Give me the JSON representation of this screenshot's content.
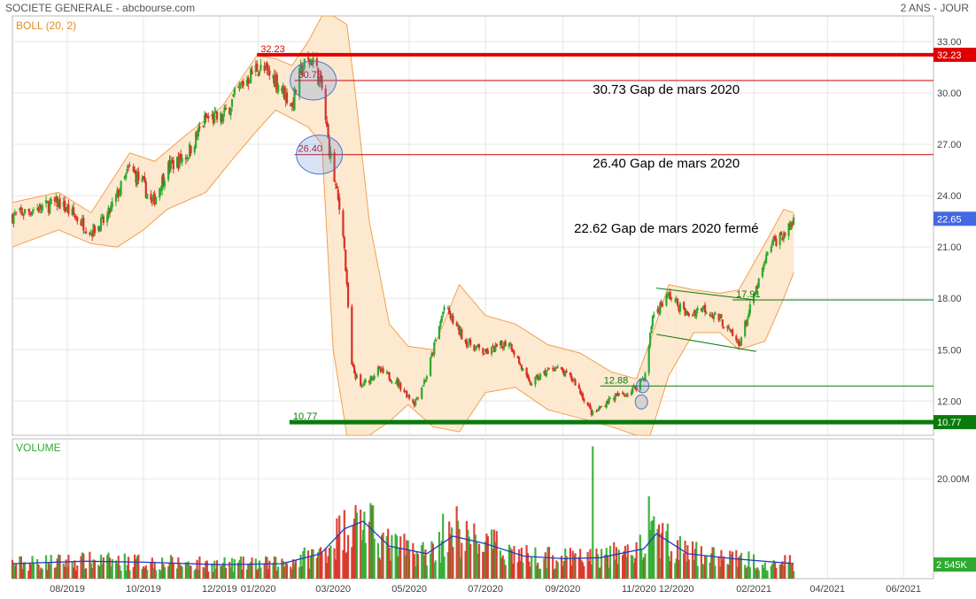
{
  "header": {
    "title": "SOCIETE GENERALE - abcbourse.com",
    "period": "2 ANS - JOUR"
  },
  "colors": {
    "up": "#2eaa2e",
    "down": "#d93025",
    "band_fill": "#fde5c8",
    "band_line": "#f0a050",
    "resistance": "#e00000",
    "support": "#0a7a0a",
    "volume_avg": "#1f3fbf",
    "last_price_bg": "#4169e1"
  },
  "chart_data": [
    {
      "type": "candlestick",
      "indicator_label": "BOLL (20, 2)",
      "ylim": [
        10.0,
        34.5
      ],
      "y_ticks": [
        "12.00",
        "15.00",
        "18.00",
        "21.00",
        "24.00",
        "27.00",
        "30.00",
        "33.00"
      ],
      "x_ticks": [
        "08/2019",
        "10/2019",
        "12/2019",
        "01/2020",
        "03/2020",
        "05/2020",
        "07/2020",
        "09/2020",
        "11/2020",
        "12/2020",
        "02/2021",
        "04/2021",
        "06/2021"
      ],
      "x_tick_dates": [
        "2019-08-01",
        "2019-10-01",
        "2019-12-01",
        "2020-01-01",
        "2020-03-01",
        "2020-05-01",
        "2020-07-01",
        "2020-09-01",
        "2020-11-01",
        "2020-12-01",
        "2021-02-01",
        "2021-04-01",
        "2021-06-01"
      ],
      "x_range": [
        "2019-06-18",
        "2021-06-25"
      ],
      "close_path": [
        [
          "2019-06-18",
          22.8
        ],
        [
          "2019-07-05",
          23.2
        ],
        [
          "2019-07-25",
          23.6
        ],
        [
          "2019-08-10",
          22.6
        ],
        [
          "2019-08-20",
          21.9
        ],
        [
          "2019-09-01",
          22.6
        ],
        [
          "2019-09-20",
          25.6
        ],
        [
          "2019-10-01",
          24.6
        ],
        [
          "2019-10-08",
          23.5
        ],
        [
          "2019-10-20",
          25.6
        ],
        [
          "2019-11-05",
          26.4
        ],
        [
          "2019-11-20",
          28.5
        ],
        [
          "2019-12-03",
          28.5
        ],
        [
          "2019-12-18",
          30.4
        ],
        [
          "2019-12-31",
          31.5
        ],
        [
          "2020-01-07",
          31.2
        ],
        [
          "2020-01-15",
          30.8
        ],
        [
          "2020-01-28",
          29.3
        ],
        [
          "2020-02-05",
          31.5
        ],
        [
          "2020-02-14",
          32.0
        ],
        [
          "2020-02-21",
          30.2
        ],
        [
          "2020-02-26",
          27.2
        ],
        [
          "2020-03-03",
          24.5
        ],
        [
          "2020-03-09",
          22.0
        ],
        [
          "2020-03-16",
          14.0
        ],
        [
          "2020-03-23",
          12.8
        ],
        [
          "2020-04-06",
          13.8
        ],
        [
          "2020-04-20",
          13.2
        ],
        [
          "2020-05-05",
          11.9
        ],
        [
          "2020-05-15",
          13.5
        ],
        [
          "2020-05-29",
          17.5
        ],
        [
          "2020-06-15",
          15.5
        ],
        [
          "2020-07-01",
          14.8
        ],
        [
          "2020-07-20",
          15.5
        ],
        [
          "2020-08-05",
          13.0
        ],
        [
          "2020-08-25",
          14.0
        ],
        [
          "2020-09-10",
          13.2
        ],
        [
          "2020-09-25",
          11.2
        ],
        [
          "2020-10-10",
          12.2
        ],
        [
          "2020-10-25",
          12.5
        ],
        [
          "2020-11-06",
          13.5
        ],
        [
          "2020-11-12",
          17.0
        ],
        [
          "2020-11-25",
          18.2
        ],
        [
          "2020-12-10",
          17.0
        ],
        [
          "2020-12-22",
          17.5
        ],
        [
          "2021-01-05",
          16.8
        ],
        [
          "2021-01-20",
          15.3
        ],
        [
          "2021-02-03",
          18.5
        ],
        [
          "2021-02-15",
          21.2
        ],
        [
          "2021-03-01",
          22.0
        ],
        [
          "2021-03-05",
          22.65
        ]
      ],
      "bollinger_upper": [
        [
          "2019-06-18",
          23.6
        ],
        [
          "2019-07-25",
          24.2
        ],
        [
          "2019-08-20",
          23.0
        ],
        [
          "2019-09-20",
          26.5
        ],
        [
          "2019-10-10",
          26.0
        ],
        [
          "2019-11-05",
          27.6
        ],
        [
          "2019-12-03",
          29.2
        ],
        [
          "2019-12-31",
          32.2
        ],
        [
          "2020-01-15",
          32.0
        ],
        [
          "2020-01-28",
          31.6
        ],
        [
          "2020-02-10",
          33.0
        ],
        [
          "2020-02-21",
          34.5
        ],
        [
          "2020-03-01",
          34.5
        ],
        [
          "2020-03-12",
          34.0
        ],
        [
          "2020-03-18",
          30.5
        ],
        [
          "2020-03-30",
          22.5
        ],
        [
          "2020-04-15",
          16.5
        ],
        [
          "2020-04-30",
          15.2
        ],
        [
          "2020-05-20",
          15.0
        ],
        [
          "2020-06-10",
          18.8
        ],
        [
          "2020-07-01",
          17.0
        ],
        [
          "2020-07-25",
          16.5
        ],
        [
          "2020-08-20",
          15.3
        ],
        [
          "2020-09-15",
          14.8
        ],
        [
          "2020-10-10",
          13.7
        ],
        [
          "2020-10-30",
          13.3
        ],
        [
          "2020-11-10",
          15.5
        ],
        [
          "2020-11-25",
          18.8
        ],
        [
          "2020-12-15",
          18.5
        ],
        [
          "2021-01-05",
          18.3
        ],
        [
          "2021-01-20",
          18.5
        ],
        [
          "2021-02-10",
          21.2
        ],
        [
          "2021-02-25",
          23.2
        ],
        [
          "2021-03-05",
          23.0
        ]
      ],
      "bollinger_lower": [
        [
          "2019-06-18",
          21.0
        ],
        [
          "2019-07-25",
          22.0
        ],
        [
          "2019-08-20",
          21.2
        ],
        [
          "2019-09-10",
          21.0
        ],
        [
          "2019-10-01",
          22.0
        ],
        [
          "2019-10-20",
          23.2
        ],
        [
          "2019-11-20",
          24.2
        ],
        [
          "2019-12-10",
          26.0
        ],
        [
          "2019-12-31",
          27.8
        ],
        [
          "2020-01-15",
          29.0
        ],
        [
          "2020-01-28",
          28.5
        ],
        [
          "2020-02-10",
          28.0
        ],
        [
          "2020-02-21",
          27.0
        ],
        [
          "2020-03-01",
          15.0
        ],
        [
          "2020-03-12",
          9.0
        ],
        [
          "2020-03-30",
          6.0
        ],
        [
          "2020-04-15",
          10.8
        ],
        [
          "2020-04-30",
          11.8
        ],
        [
          "2020-05-20",
          10.5
        ],
        [
          "2020-06-10",
          10.2
        ],
        [
          "2020-07-01",
          12.5
        ],
        [
          "2020-07-25",
          12.8
        ],
        [
          "2020-08-20",
          11.5
        ],
        [
          "2020-09-15",
          11.0
        ],
        [
          "2020-10-10",
          10.5
        ],
        [
          "2020-10-30",
          9.5
        ],
        [
          "2020-11-10",
          9.0
        ],
        [
          "2020-11-25",
          13.5
        ],
        [
          "2020-12-15",
          16.0
        ],
        [
          "2021-01-05",
          16.0
        ],
        [
          "2021-01-20",
          15.0
        ],
        [
          "2021-02-10",
          15.5
        ],
        [
          "2021-02-25",
          18.0
        ],
        [
          "2021-03-05",
          19.5
        ]
      ],
      "horizontal_levels": [
        {
          "value": 32.23,
          "label": "32.23",
          "color": "#e00000",
          "width": 4,
          "from": "2019-12-31",
          "axis_label": "32.23"
        },
        {
          "value": 30.73,
          "label": "30.73",
          "color": "#cc0000",
          "width": 1,
          "from": "2020-01-30"
        },
        {
          "value": 26.4,
          "label": "26.40",
          "color": "#cc0000",
          "width": 1,
          "from": "2020-01-30"
        },
        {
          "value": 12.88,
          "label": "12.88",
          "color": "#0a7a0a",
          "width": 1,
          "from": "2020-10-01"
        },
        {
          "value": 17.91,
          "label": "17.91",
          "color": "#0a7a0a",
          "width": 1,
          "from": "2021-01-15"
        },
        {
          "value": 10.77,
          "label": "10.77",
          "color": "#0a7a0a",
          "width": 5,
          "from": "2020-01-26",
          "axis_label": "10.77"
        }
      ],
      "trendlines": [
        {
          "from": [
            "2020-11-15",
            18.6
          ],
          "to": [
            "2021-02-03",
            17.9
          ]
        },
        {
          "from": [
            "2020-11-15",
            15.9
          ],
          "to": [
            "2021-02-03",
            14.9
          ]
        }
      ],
      "gap_circles": [
        {
          "date": "2020-02-14",
          "value": 30.73
        },
        {
          "date": "2020-02-19",
          "value": 26.4
        },
        {
          "date": "2020-11-04",
          "value": 12.9
        },
        {
          "date": "2020-11-03",
          "value": 11.95
        }
      ],
      "annotations": [
        {
          "text": "30.73 Gap de mars 2020",
          "date": "2020-09-25",
          "value": 30.73
        },
        {
          "text": "26.40 Gap de mars 2020",
          "date": "2020-09-25",
          "value": 26.4
        },
        {
          "text": "22.62 Gap de mars 2020 fermé",
          "date": "2020-09-10",
          "value": 22.62
        }
      ],
      "last_price": "22.65",
      "last_price_value": 22.65
    },
    {
      "type": "bar",
      "indicator_label": "VOLUME",
      "ylim": [
        0,
        28000000
      ],
      "y_tick_label": "20.00M",
      "y_tick_value": 20000000,
      "last_volume_label": "2 545K",
      "volume_profile": [
        [
          "2019-06-18",
          3.0
        ],
        [
          "2019-08-15",
          3.5
        ],
        [
          "2019-10-01",
          3.3
        ],
        [
          "2019-12-01",
          2.8
        ],
        [
          "2020-01-20",
          3.0
        ],
        [
          "2020-02-20",
          5.0
        ],
        [
          "2020-03-10",
          10.0
        ],
        [
          "2020-03-25",
          11.5
        ],
        [
          "2020-04-15",
          6.5
        ],
        [
          "2020-05-15",
          5.0
        ],
        [
          "2020-06-05",
          8.5
        ],
        [
          "2020-07-01",
          7.0
        ],
        [
          "2020-08-01",
          4.5
        ],
        [
          "2020-09-01",
          4.0
        ],
        [
          "2020-10-01",
          4.2
        ],
        [
          "2020-11-05",
          6.0
        ],
        [
          "2020-11-15",
          9.0
        ],
        [
          "2020-12-10",
          5.0
        ],
        [
          "2021-01-15",
          4.0
        ],
        [
          "2021-03-05",
          3.0
        ]
      ],
      "volume_spikes": [
        [
          "2020-09-25",
          26.5
        ],
        [
          "2020-11-09",
          16.5
        ],
        [
          "2020-06-08",
          14.5
        ],
        [
          "2020-03-18",
          12.0
        ],
        [
          "2020-05-28",
          13.0
        ]
      ]
    }
  ]
}
